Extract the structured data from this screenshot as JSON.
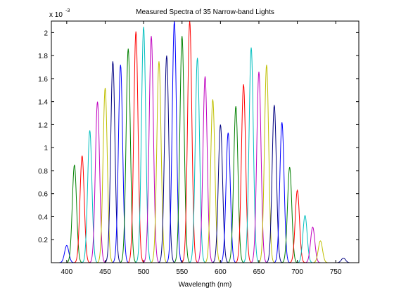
{
  "figure": {
    "background": "#ffffff"
  },
  "chart_data": {
    "type": "line",
    "title": "Measured Spectra of 35 Narrow-band Lights",
    "xlabel": "Wavelength (nm)",
    "ylabel": "",
    "y_multiplier_label": "x 10",
    "y_multiplier_exponent": "-3",
    "xlim": [
      380,
      780
    ],
    "ylim": [
      0,
      0.0021
    ],
    "xticks": [
      400,
      450,
      500,
      550,
      600,
      650,
      700,
      750
    ],
    "yticks": [
      0.0002,
      0.0004,
      0.0006,
      0.0008,
      0.001,
      0.0012,
      0.0014,
      0.0016,
      0.0018,
      0.002
    ],
    "ytick_labels": [
      "0.2",
      "0.4",
      "0.6",
      "0.8",
      "1",
      "1.2",
      "1.4",
      "1.6",
      "1.8",
      "2"
    ],
    "grid": false,
    "legend": false,
    "line_shape": "gaussian",
    "peak_fwhm_nm": 6.5,
    "color_cycle": [
      "#0000ff",
      "#008000",
      "#ff0000",
      "#00bfbf",
      "#bf00bf",
      "#bfbf00",
      "#000080"
    ],
    "series": [
      {
        "center": 400,
        "peak": 0.00015
      },
      {
        "center": 410,
        "peak": 0.00085
      },
      {
        "center": 420,
        "peak": 0.00093
      },
      {
        "center": 430,
        "peak": 0.00115
      },
      {
        "center": 440,
        "peak": 0.0014
      },
      {
        "center": 450,
        "peak": 0.00152
      },
      {
        "center": 460,
        "peak": 0.00175
      },
      {
        "center": 470,
        "peak": 0.00172
      },
      {
        "center": 480,
        "peak": 0.00186
      },
      {
        "center": 490,
        "peak": 0.00201
      },
      {
        "center": 500,
        "peak": 0.00205
      },
      {
        "center": 510,
        "peak": 0.00197
      },
      {
        "center": 520,
        "peak": 0.00175
      },
      {
        "center": 530,
        "peak": 0.0018
      },
      {
        "center": 540,
        "peak": 0.0021
      },
      {
        "center": 550,
        "peak": 0.00197
      },
      {
        "center": 560,
        "peak": 0.0021
      },
      {
        "center": 570,
        "peak": 0.00178
      },
      {
        "center": 580,
        "peak": 0.00162
      },
      {
        "center": 590,
        "peak": 0.00142
      },
      {
        "center": 600,
        "peak": 0.0012
      },
      {
        "center": 610,
        "peak": 0.00113
      },
      {
        "center": 620,
        "peak": 0.00136
      },
      {
        "center": 630,
        "peak": 0.00155
      },
      {
        "center": 640,
        "peak": 0.00187
      },
      {
        "center": 650,
        "peak": 0.00166
      },
      {
        "center": 660,
        "peak": 0.00172
      },
      {
        "center": 670,
        "peak": 0.00137
      },
      {
        "center": 680,
        "peak": 0.00122
      },
      {
        "center": 690,
        "peak": 0.00083
      },
      {
        "center": 700,
        "peak": 0.00063
      },
      {
        "center": 710,
        "peak": 0.00041
      },
      {
        "center": 720,
        "peak": 0.00031
      },
      {
        "center": 730,
        "peak": 0.00019
      },
      {
        "center": 760,
        "peak": 4e-05
      }
    ]
  }
}
